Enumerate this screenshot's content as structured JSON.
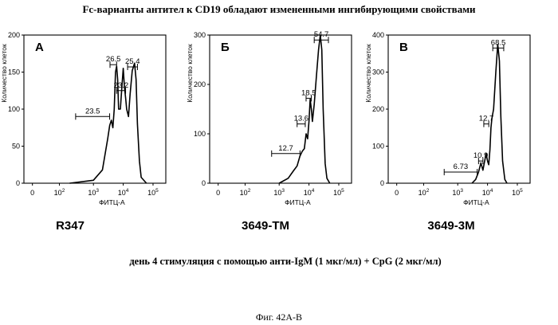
{
  "figure_title": "Fc-варианты антител к CD19 обладают измененными ингибирующими свойствами",
  "subtitle": "день 4   стимуляция с помощью анти-IgM (1 мкг/мл) + CpG (2 мкг/мл)",
  "caption": "Фиг. 42А-В",
  "chart_data": [
    {
      "type": "area",
      "panel_letter": "A",
      "panel_name": "R347",
      "xlabel": "ФИТЦ-А",
      "ylabel": "Количество клеток",
      "xscale": "log",
      "xlim": [
        0,
        150000
      ],
      "ylim": [
        0,
        200
      ],
      "yticks": [
        0,
        50,
        100,
        150,
        200
      ],
      "xticks": [
        "0",
        "10^2",
        "10^3",
        "10^4",
        "10^5"
      ],
      "gates": [
        {
          "label": "23.5",
          "x_from": 300,
          "x_to": 3500,
          "y": 90
        },
        {
          "label": "26.5",
          "x_from": 3600,
          "x_to": 6000,
          "y": 160
        },
        {
          "label": "23.2",
          "x_from": 6000,
          "x_to": 12000,
          "y": 125
        },
        {
          "label": "25.4",
          "x_from": 14000,
          "x_to": 30000,
          "y": 157
        }
      ],
      "curve": [
        [
          200,
          0
        ],
        [
          1000,
          4
        ],
        [
          2000,
          18
        ],
        [
          3000,
          60
        ],
        [
          3500,
          78
        ],
        [
          4000,
          85
        ],
        [
          4500,
          75
        ],
        [
          5000,
          100
        ],
        [
          5500,
          150
        ],
        [
          6000,
          158
        ],
        [
          6500,
          140
        ],
        [
          7000,
          100
        ],
        [
          8000,
          100
        ],
        [
          9000,
          130
        ],
        [
          10000,
          155
        ],
        [
          11000,
          130
        ],
        [
          12000,
          115
        ],
        [
          13000,
          100
        ],
        [
          15000,
          90
        ],
        [
          17000,
          120
        ],
        [
          20000,
          152
        ],
        [
          24000,
          162
        ],
        [
          27000,
          140
        ],
        [
          30000,
          80
        ],
        [
          35000,
          30
        ],
        [
          40000,
          8
        ],
        [
          60000,
          0
        ]
      ]
    },
    {
      "type": "area",
      "panel_letter": "Б",
      "panel_name": "3649-TM",
      "xlabel": "ФИТЦ-А",
      "ylabel": "Количество клеток",
      "xscale": "log",
      "xlim": [
        0,
        150000
      ],
      "ylim": [
        0,
        300
      ],
      "yticks": [
        0,
        100,
        200,
        300
      ],
      "xticks": [
        "0",
        "10^2",
        "10^3",
        "10^4",
        "10^5"
      ],
      "gates": [
        {
          "label": "12.7",
          "x_from": 600,
          "x_to": 5000,
          "y": 60
        },
        {
          "label": "13.6",
          "x_from": 4000,
          "x_to": 7500,
          "y": 120
        },
        {
          "label": "18.5",
          "x_from": 8000,
          "x_to": 12000,
          "y": 172
        },
        {
          "label": "54.7",
          "x_from": 15000,
          "x_to": 45000,
          "y": 290
        }
      ],
      "curve": [
        [
          1000,
          0
        ],
        [
          2000,
          10
        ],
        [
          3000,
          25
        ],
        [
          4000,
          35
        ],
        [
          5000,
          55
        ],
        [
          6000,
          65
        ],
        [
          7000,
          70
        ],
        [
          8000,
          100
        ],
        [
          9000,
          90
        ],
        [
          10000,
          125
        ],
        [
          11000,
          170
        ],
        [
          12000,
          150
        ],
        [
          13000,
          125
        ],
        [
          15000,
          160
        ],
        [
          18000,
          220
        ],
        [
          21000,
          270
        ],
        [
          24000,
          300
        ],
        [
          27000,
          270
        ],
        [
          30000,
          150
        ],
        [
          35000,
          40
        ],
        [
          40000,
          10
        ],
        [
          50000,
          0
        ]
      ]
    },
    {
      "type": "area",
      "panel_letter": "В",
      "panel_name": "3649-3M",
      "xlabel": "ФИТЦ-А",
      "ylabel": "Количество клеток",
      "xscale": "log",
      "xlim": [
        0,
        150000
      ],
      "ylim": [
        0,
        400
      ],
      "yticks": [
        0,
        100,
        200,
        300,
        400
      ],
      "xticks": [
        "0",
        "10^2",
        "10^3",
        "10^4",
        "10^5"
      ],
      "gates": [
        {
          "label": "6.73",
          "x_from": 400,
          "x_to": 4500,
          "y": 30
        },
        {
          "label": "10.9",
          "x_from": 5000,
          "x_to": 7000,
          "y": 60
        },
        {
          "label": "12.7",
          "x_from": 7500,
          "x_to": 11000,
          "y": 160
        },
        {
          "label": "68.5",
          "x_from": 15000,
          "x_to": 35000,
          "y": 365
        }
      ],
      "curve": [
        [
          3000,
          0
        ],
        [
          4000,
          10
        ],
        [
          5000,
          30
        ],
        [
          6000,
          55
        ],
        [
          7000,
          35
        ],
        [
          8000,
          60
        ],
        [
          9000,
          80
        ],
        [
          10000,
          60
        ],
        [
          11000,
          50
        ],
        [
          12000,
          90
        ],
        [
          13000,
          150
        ],
        [
          14000,
          175
        ],
        [
          16000,
          200
        ],
        [
          19000,
          300
        ],
        [
          22000,
          375
        ],
        [
          25000,
          330
        ],
        [
          28000,
          180
        ],
        [
          32000,
          60
        ],
        [
          38000,
          10
        ],
        [
          45000,
          0
        ]
      ]
    }
  ]
}
